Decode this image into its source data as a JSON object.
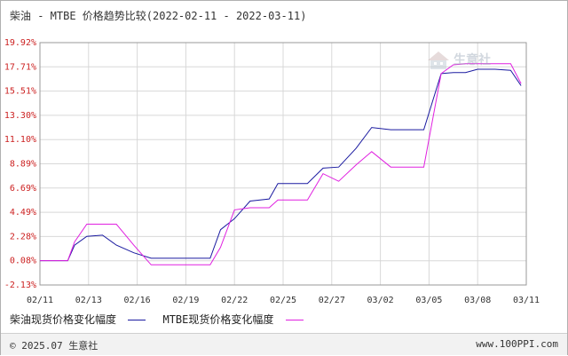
{
  "title": "柴油 - MTBE 价格趋势比较(2022-02-11 - 2022-03-11)",
  "watermark_text": "生意社",
  "footer": {
    "copyright": "© 2025.07 生意社",
    "site_url": "www.100PPI.com"
  },
  "chart_data": {
    "type": "line",
    "title": "柴油 - MTBE 价格趋势比较(2022-02-11 - 2022-03-11)",
    "x_tick_labels": [
      "02/11",
      "02/13",
      "02/16",
      "02/19",
      "02/22",
      "02/25",
      "02/27",
      "03/02",
      "03/05",
      "03/08",
      "03/11"
    ],
    "y_tick_labels": [
      "19.92%",
      "17.71%",
      "15.51%",
      "13.30%",
      "11.10%",
      "8.89%",
      "6.69%",
      "4.49%",
      "2.28%",
      "0.08%",
      "-2.13%"
    ],
    "ylim": [
      -2.13,
      19.92
    ],
    "grid": true,
    "legend_position": "bottom-left",
    "series": [
      {
        "name": "柴油现货价格变化幅度",
        "color": "#1a1aa0",
        "x": [
          0,
          1,
          1.6,
          2,
          2.7,
          3.6,
          4.4,
          5.4,
          6.4,
          7.1,
          7.5,
          8.2,
          9.3,
          9.8,
          10.4,
          11.2,
          12.1,
          13.2,
          13.7,
          14.4,
          15.4,
          16.3,
          17.2,
          18.2,
          19.1,
          20.2,
          21.3,
          22.1,
          23.1,
          23.8,
          24.5,
          25.2,
          26.2,
          27.1,
          27.7
        ],
        "y": [
          0.08,
          0.08,
          0.08,
          1.5,
          2.3,
          2.4,
          1.5,
          0.8,
          0.3,
          0.3,
          0.3,
          0.3,
          0.3,
          0.3,
          2.9,
          3.9,
          5.5,
          5.7,
          7.1,
          7.1,
          7.1,
          8.5,
          8.6,
          10.3,
          12.2,
          12.0,
          12.0,
          12.0,
          17.1,
          17.2,
          17.2,
          17.5,
          17.5,
          17.4,
          16.0
        ],
        "note": ""
      },
      {
        "name": "MTBE现货价格变化幅度",
        "color": "#e020e0",
        "x": [
          0,
          1,
          1.6,
          2,
          2.7,
          3.6,
          4.4,
          5.4,
          6.4,
          7.1,
          7.5,
          8.2,
          9.3,
          9.8,
          10.4,
          11.2,
          12.1,
          13.2,
          13.7,
          14.4,
          15.4,
          16.3,
          17.2,
          18.2,
          19.1,
          20.2,
          21.3,
          22.1,
          23.1,
          23.8,
          24.5,
          25.2,
          26.2,
          27.1,
          27.7
        ],
        "y": [
          0.08,
          0.08,
          0.08,
          1.8,
          3.4,
          3.4,
          3.4,
          1.5,
          -0.3,
          -0.3,
          -0.3,
          -0.3,
          -0.3,
          -0.3,
          1.3,
          4.7,
          4.9,
          4.9,
          5.6,
          5.6,
          5.6,
          8.0,
          7.3,
          8.8,
          10.0,
          8.6,
          8.6,
          8.6,
          17.1,
          17.9,
          18.0,
          18.0,
          18.0,
          18.0,
          16.2
        ],
        "note": ""
      }
    ]
  }
}
